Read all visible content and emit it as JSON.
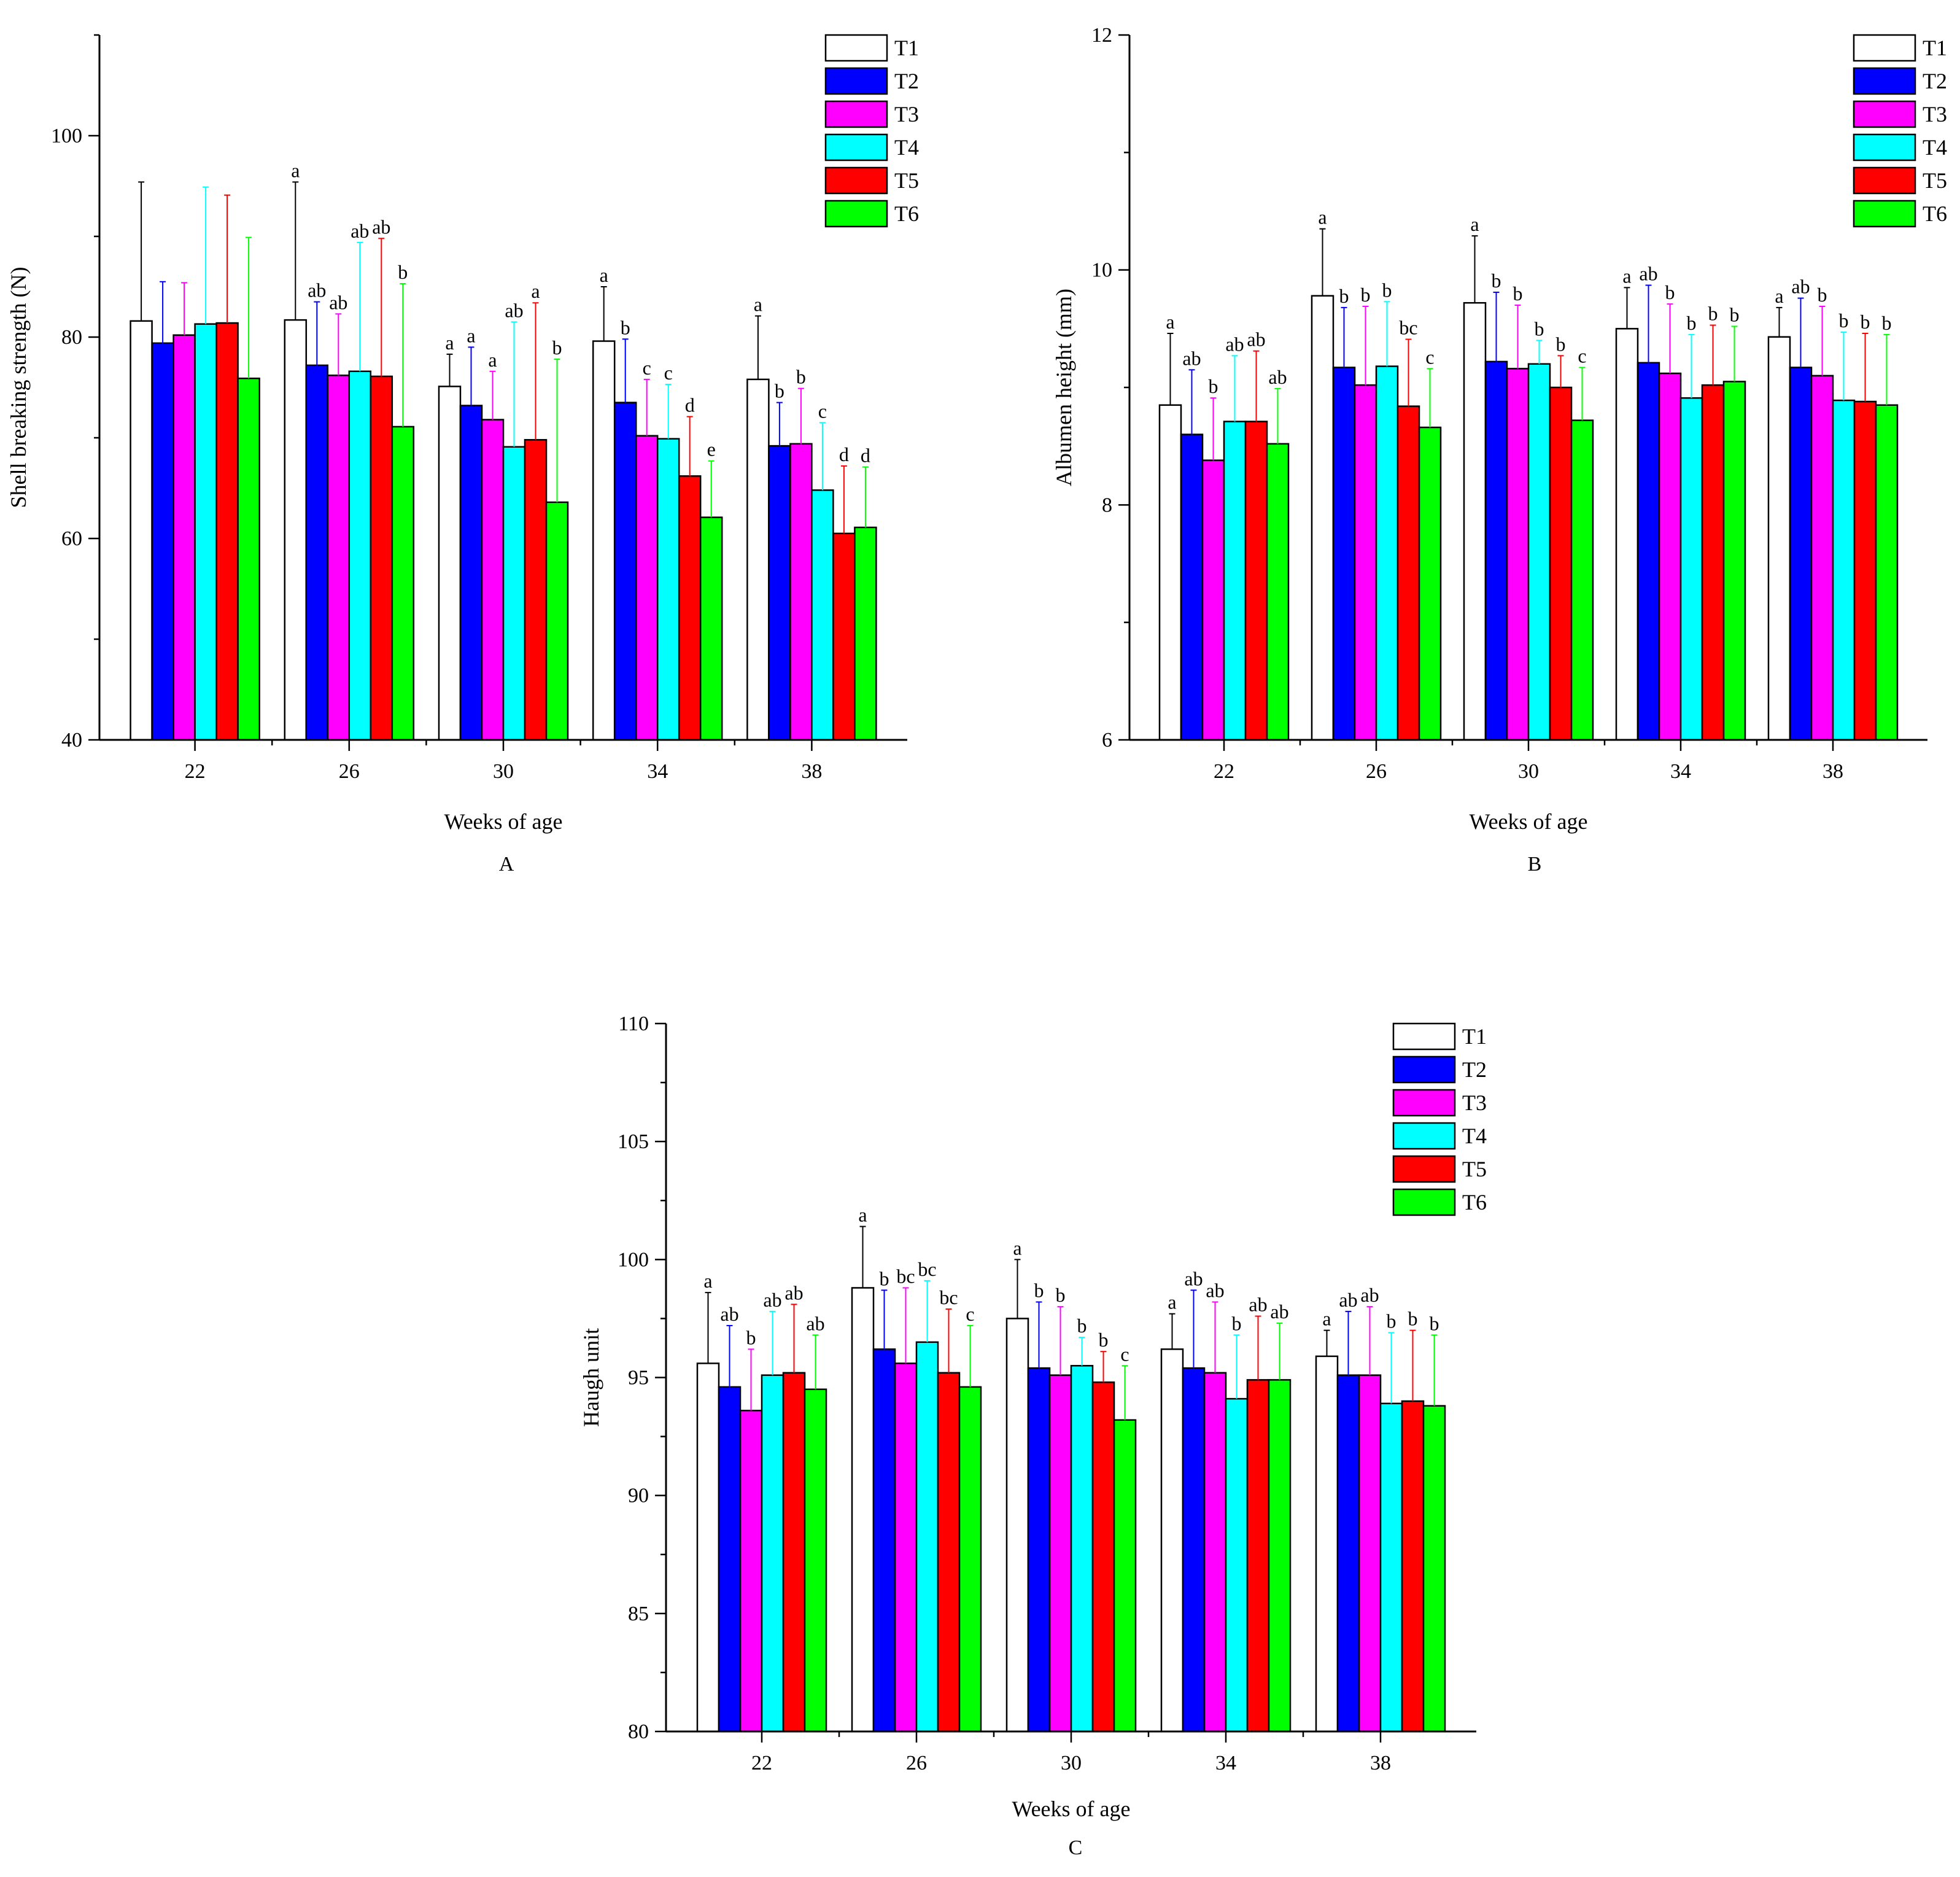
{
  "legend": [
    "T1",
    "T2",
    "T3",
    "T4",
    "T5",
    "T6"
  ],
  "colors": {
    "T1": "#ffffff",
    "T2": "#0000ff",
    "T3": "#ff00ff",
    "T4": "#00ffff",
    "T5": "#ff0000",
    "T6": "#00ff00"
  },
  "chart_data": [
    {
      "panel": "A",
      "type": "bar",
      "categories": [
        "22",
        "26",
        "30",
        "34",
        "38"
      ],
      "xlabel": "Weeks of age",
      "ylabel": "Shell breaking strength (N)",
      "ylim": [
        40,
        110
      ],
      "yticks": [
        40,
        60,
        80,
        100
      ],
      "legend_position": "top-right",
      "series": [
        {
          "name": "T1",
          "values": [
            81.6,
            81.7,
            75.1,
            79.6,
            75.8
          ],
          "errors": [
            13.8,
            13.7,
            3.2,
            5.4,
            6.3
          ],
          "labels": [
            "",
            "a",
            "a",
            "a",
            "a"
          ]
        },
        {
          "name": "T2",
          "values": [
            79.4,
            77.2,
            73.2,
            73.5,
            69.2
          ],
          "errors": [
            6.1,
            6.3,
            5.8,
            6.3,
            4.3
          ],
          "labels": [
            "",
            "ab",
            "a",
            "b",
            "b"
          ]
        },
        {
          "name": "T3",
          "values": [
            80.2,
            76.2,
            71.8,
            70.2,
            69.4
          ],
          "errors": [
            5.2,
            6.1,
            4.8,
            5.6,
            5.5
          ],
          "labels": [
            "",
            "ab",
            "a",
            "c",
            "b"
          ]
        },
        {
          "name": "T4",
          "values": [
            81.3,
            76.6,
            69.1,
            69.9,
            64.8
          ],
          "errors": [
            13.6,
            12.8,
            12.4,
            5.4,
            6.7
          ],
          "labels": [
            "",
            "ab",
            "ab",
            "c",
            "c"
          ]
        },
        {
          "name": "T5",
          "values": [
            81.4,
            76.1,
            69.8,
            66.2,
            60.5
          ],
          "errors": [
            12.7,
            13.7,
            13.6,
            5.9,
            6.7
          ],
          "labels": [
            "",
            "ab",
            "a",
            "d",
            "d"
          ]
        },
        {
          "name": "T6",
          "values": [
            75.9,
            71.1,
            63.6,
            62.1,
            61.1
          ],
          "errors": [
            14.0,
            14.2,
            14.2,
            5.6,
            6.0
          ],
          "labels": [
            "",
            "b",
            "b",
            "e",
            "d"
          ]
        }
      ]
    },
    {
      "panel": "B",
      "type": "bar",
      "categories": [
        "22",
        "26",
        "30",
        "34",
        "38"
      ],
      "xlabel": "Weeks of age",
      "ylabel": "Albumen height (mm)",
      "ylim": [
        6,
        12
      ],
      "yticks": [
        6,
        8,
        10,
        12
      ],
      "legend_position": "top-right",
      "series": [
        {
          "name": "T1",
          "values": [
            8.85,
            9.78,
            9.72,
            9.5,
            9.43
          ],
          "errors": [
            0.61,
            0.57,
            0.57,
            0.35,
            0.25
          ],
          "labels": [
            "a",
            "a",
            "a",
            "a",
            "a"
          ]
        },
        {
          "name": "T2",
          "values": [
            8.6,
            9.17,
            9.22,
            9.21,
            9.17
          ],
          "errors": [
            0.55,
            0.51,
            0.59,
            0.66,
            0.59
          ],
          "labels": [
            "ab",
            "b",
            "b",
            "ab",
            "ab"
          ]
        },
        {
          "name": "T3",
          "values": [
            8.38,
            9.02,
            9.16,
            9.12,
            9.1
          ],
          "errors": [
            0.53,
            0.67,
            0.54,
            0.59,
            0.59
          ],
          "labels": [
            "b",
            "b",
            "b",
            "b",
            "b"
          ]
        },
        {
          "name": "T4",
          "values": [
            8.71,
            9.18,
            9.2,
            8.91,
            8.89
          ],
          "errors": [
            0.56,
            0.55,
            0.2,
            0.54,
            0.58
          ],
          "labels": [
            "ab",
            "b",
            "b",
            "b",
            "b"
          ]
        },
        {
          "name": "T5",
          "values": [
            8.71,
            8.84,
            9.0,
            9.02,
            8.88
          ],
          "errors": [
            0.6,
            0.57,
            0.27,
            0.51,
            0.58
          ],
          "labels": [
            "ab",
            "bc",
            "b",
            "b",
            "b"
          ]
        },
        {
          "name": "T6",
          "values": [
            8.52,
            8.66,
            8.72,
            9.05,
            8.85
          ],
          "errors": [
            0.47,
            0.5,
            0.45,
            0.47,
            0.6
          ],
          "labels": [
            "ab",
            "c",
            "c",
            "b",
            "b"
          ]
        }
      ]
    },
    {
      "panel": "C",
      "type": "bar",
      "categories": [
        "22",
        "26",
        "30",
        "34",
        "38"
      ],
      "xlabel": "Weeks of age",
      "ylabel": "Haugh unit",
      "ylim": [
        80,
        110
      ],
      "yticks": [
        80,
        85,
        90,
        95,
        100,
        105,
        110
      ],
      "legend_position": "top-right",
      "series": [
        {
          "name": "T1",
          "values": [
            95.6,
            98.8,
            97.5,
            96.2,
            95.9
          ],
          "errors": [
            3.0,
            2.6,
            2.5,
            1.5,
            1.1
          ],
          "labels": [
            "a",
            "a",
            "a",
            "a",
            "a"
          ]
        },
        {
          "name": "T2",
          "values": [
            94.6,
            96.2,
            95.4,
            95.4,
            95.1
          ],
          "errors": [
            2.6,
            2.5,
            2.8,
            3.3,
            2.7
          ],
          "labels": [
            "ab",
            "b",
            "b",
            "ab",
            "ab"
          ]
        },
        {
          "name": "T3",
          "values": [
            93.6,
            95.6,
            95.1,
            95.2,
            95.1
          ],
          "errors": [
            2.6,
            3.2,
            2.9,
            3.0,
            2.9
          ],
          "labels": [
            "b",
            "bc",
            "b",
            "ab",
            "ab"
          ]
        },
        {
          "name": "T4",
          "values": [
            95.1,
            96.5,
            95.5,
            94.1,
            93.9
          ],
          "errors": [
            2.7,
            2.6,
            1.2,
            2.7,
            3.0
          ],
          "labels": [
            "ab",
            "bc",
            "b",
            "b",
            "b"
          ]
        },
        {
          "name": "T5",
          "values": [
            95.2,
            95.2,
            94.8,
            94.9,
            94.0
          ],
          "errors": [
            2.9,
            2.7,
            1.3,
            2.7,
            3.0
          ],
          "labels": [
            "ab",
            "bc",
            "b",
            "ab",
            "b"
          ]
        },
        {
          "name": "T6",
          "values": [
            94.5,
            94.6,
            93.2,
            94.9,
            93.8
          ],
          "errors": [
            2.3,
            2.6,
            2.3,
            2.4,
            3.0
          ],
          "labels": [
            "ab",
            "c",
            "c",
            "ab",
            "b"
          ]
        }
      ]
    }
  ]
}
